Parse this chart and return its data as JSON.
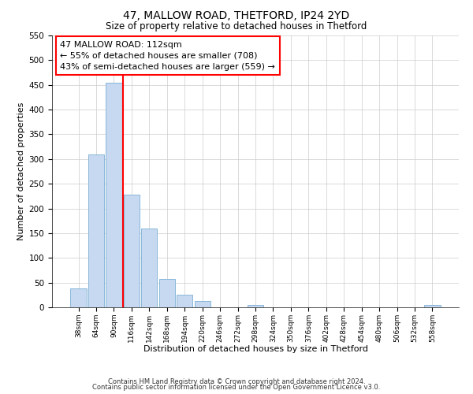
{
  "title1": "47, MALLOW ROAD, THETFORD, IP24 2YD",
  "title2": "Size of property relative to detached houses in Thetford",
  "xlabel": "Distribution of detached houses by size in Thetford",
  "ylabel": "Number of detached properties",
  "bin_labels": [
    "38sqm",
    "64sqm",
    "90sqm",
    "116sqm",
    "142sqm",
    "168sqm",
    "194sqm",
    "220sqm",
    "246sqm",
    "272sqm",
    "298sqm",
    "324sqm",
    "350sqm",
    "376sqm",
    "402sqm",
    "428sqm",
    "454sqm",
    "480sqm",
    "506sqm",
    "532sqm",
    "558sqm"
  ],
  "bar_heights": [
    38,
    310,
    455,
    228,
    160,
    57,
    26,
    12,
    0,
    0,
    4,
    0,
    0,
    0,
    0,
    0,
    0,
    0,
    0,
    0,
    4
  ],
  "bar_color": "#c6d9f0",
  "bar_edge_color": "#7bafd4",
  "vline_color": "red",
  "annotation_title": "47 MALLOW ROAD: 112sqm",
  "annotation_line1": "← 55% of detached houses are smaller (708)",
  "annotation_line2": "43% of semi-detached houses are larger (559) →",
  "annotation_box_color": "white",
  "annotation_box_edge_color": "red",
  "ylim": [
    0,
    550
  ],
  "yticks": [
    0,
    50,
    100,
    150,
    200,
    250,
    300,
    350,
    400,
    450,
    500,
    550
  ],
  "footnote1": "Contains HM Land Registry data © Crown copyright and database right 2024.",
  "footnote2": "Contains public sector information licensed under the Open Government Licence v3.0."
}
